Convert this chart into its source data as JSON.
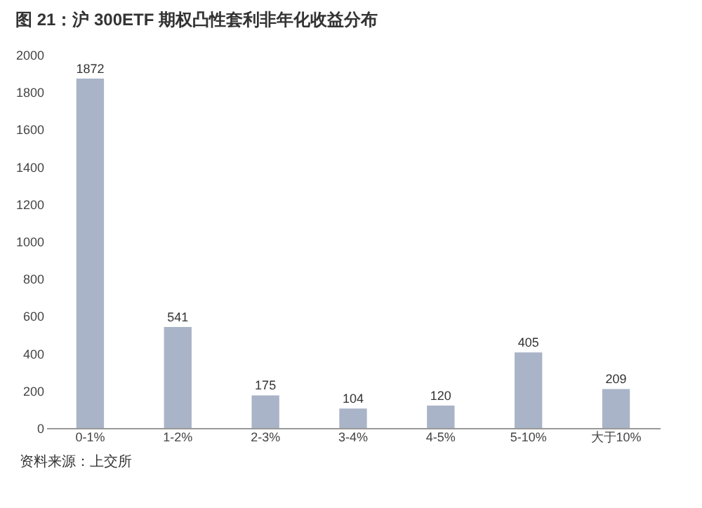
{
  "chart_data": {
    "type": "bar",
    "title": "图 21：沪 300ETF 期权凸性套利非年化收益分布",
    "categories": [
      "0-1%",
      "1-2%",
      "2-3%",
      "3-4%",
      "4-5%",
      "5-10%",
      "大于10%"
    ],
    "values": [
      1872,
      541,
      175,
      104,
      120,
      405,
      209
    ],
    "color": "#a9b4c8",
    "ylim": [
      0,
      2000
    ],
    "yticks": [
      0,
      200,
      400,
      600,
      800,
      1000,
      1200,
      1400,
      1600,
      1800,
      2000
    ],
    "grid": false,
    "data_labels": true,
    "annotations": [
      "资料来源：上交所"
    ]
  }
}
